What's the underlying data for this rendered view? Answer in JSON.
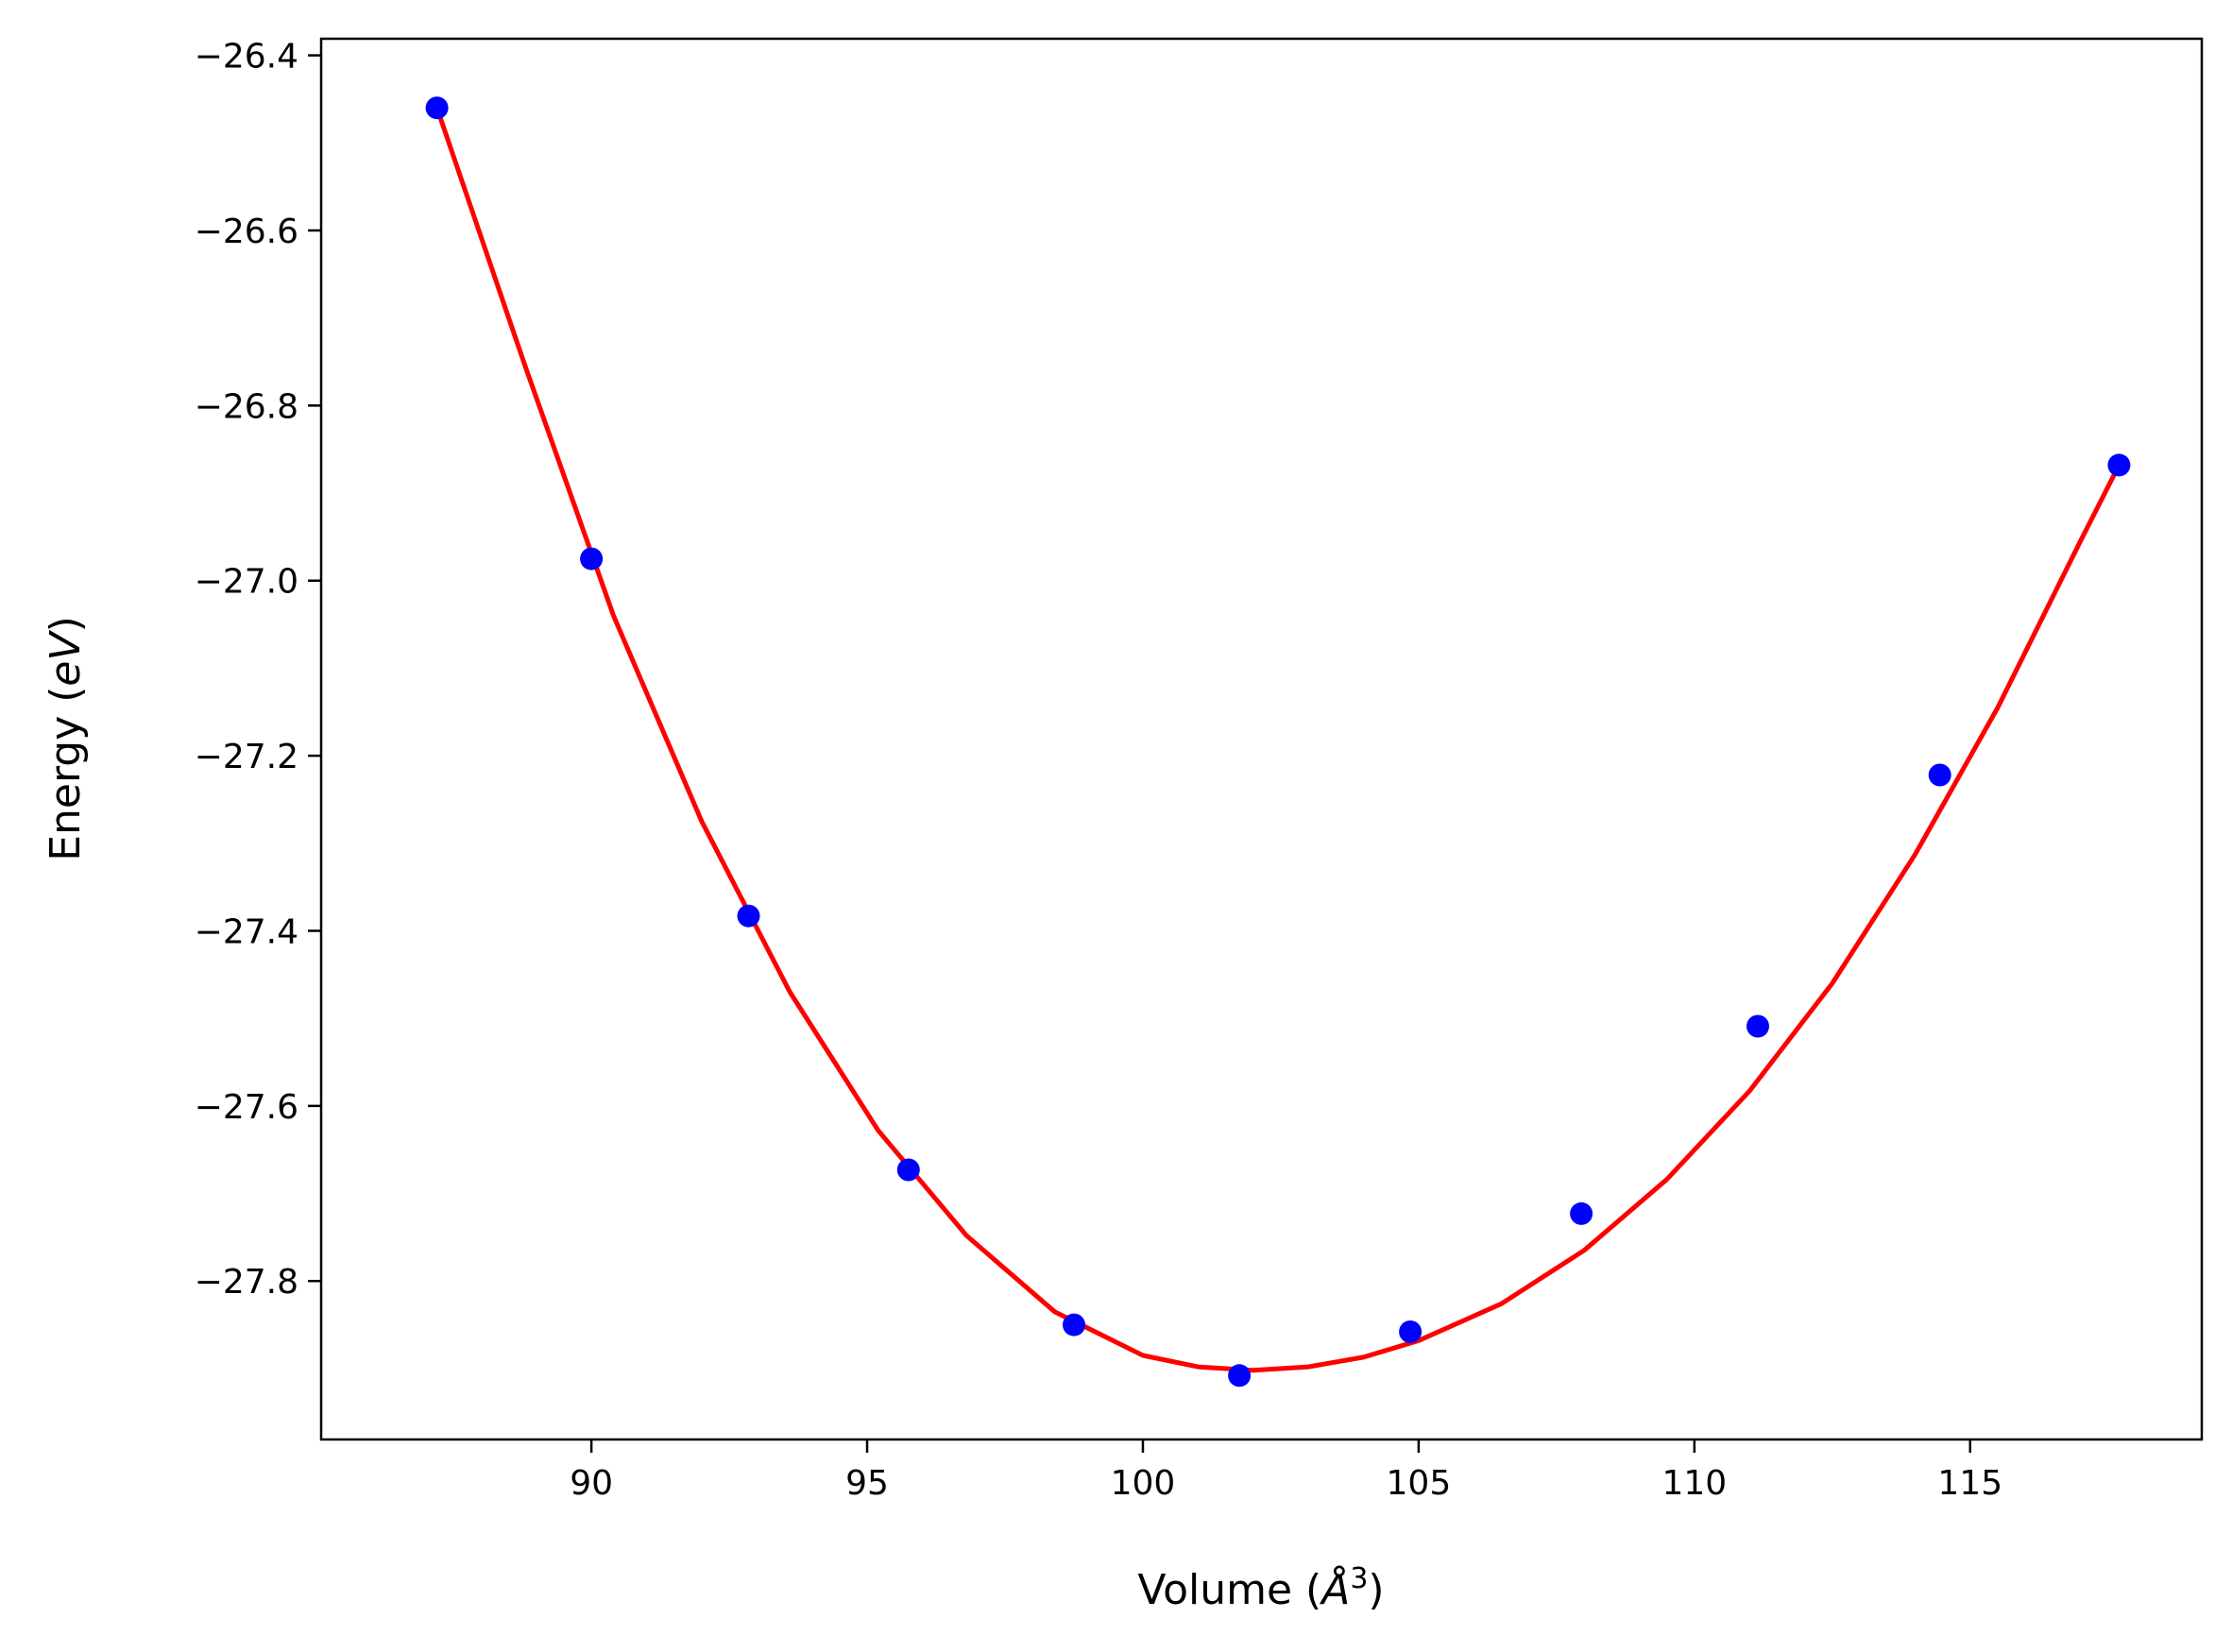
{
  "chart_data": {
    "type": "scatter",
    "title": "",
    "xlabel": "Volume (",
    "xlabel_symbol": "Å",
    "xlabel_exponent": "3",
    "xlabel_close": ")",
    "ylabel": "Energy (",
    "ylabel_unit": "eV",
    "ylabel_close": ")",
    "xlim": [
      85.1,
      119.2
    ],
    "ylim": [
      -27.981,
      -26.381
    ],
    "x_ticks": [
      90,
      95,
      100,
      105,
      110,
      115
    ],
    "x_tick_labels": [
      "90",
      "95",
      "100",
      "105",
      "110",
      "115"
    ],
    "y_ticks": [
      -26.4,
      -26.6,
      -26.8,
      -27.0,
      -27.2,
      -27.4,
      -27.6,
      -27.8
    ],
    "y_tick_labels": [
      "−26.4",
      "−26.6",
      "−26.8",
      "−27.0",
      "−27.2",
      "−27.4",
      "−27.6",
      "−27.8"
    ],
    "grid": false,
    "series": [
      {
        "kind": "points",
        "color": "#0000ff",
        "x": [
          87.2,
          90.0,
          92.85,
          95.75,
          98.75,
          101.75,
          104.85,
          107.95,
          111.15,
          114.45,
          117.7
        ],
        "y": [
          -26.46,
          -26.975,
          -27.383,
          -27.673,
          -27.85,
          -27.908,
          -27.858,
          -27.723,
          -27.509,
          -27.222,
          -26.868
        ]
      },
      {
        "kind": "line",
        "color": "#ff0000",
        "x": [
          87.2,
          88.8,
          90.4,
          92.0,
          93.6,
          95.2,
          96.8,
          98.4,
          100.0,
          101.0,
          102.0,
          103.0,
          104.0,
          105.0,
          106.5,
          108.0,
          109.5,
          111.0,
          112.5,
          114.0,
          115.5,
          117.0,
          117.7
        ],
        "y": [
          -26.46,
          -26.755,
          -27.04,
          -27.275,
          -27.47,
          -27.628,
          -27.748,
          -27.835,
          -27.885,
          -27.898,
          -27.902,
          -27.898,
          -27.887,
          -27.868,
          -27.826,
          -27.765,
          -27.684,
          -27.583,
          -27.46,
          -27.313,
          -27.145,
          -26.955,
          -26.868
        ]
      }
    ]
  }
}
